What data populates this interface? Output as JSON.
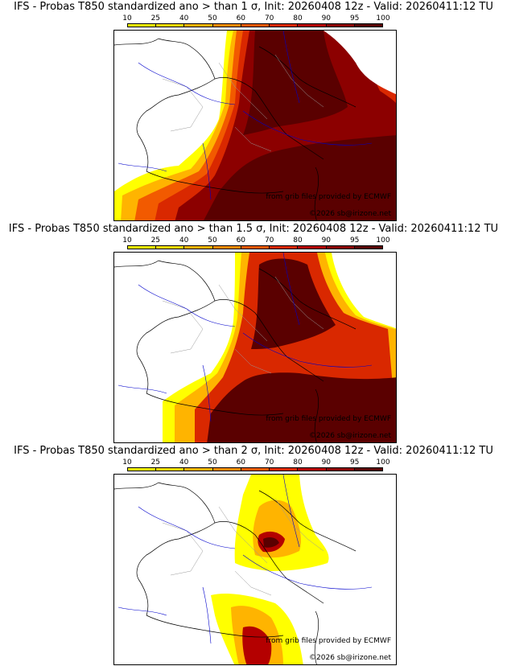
{
  "panels": [
    {
      "title": "IFS - Probas T850  standardized ano > than 1 σ, Init: 20260408 12z - Valid: 20260411:12 TU",
      "threshold": "1 σ",
      "credit_source": "from grib files provided by ECMWF",
      "credit_copyright": "©2026 sb@irizone.net"
    },
    {
      "title": "IFS - Probas T850  standardized ano > than 1.5 σ, Init: 20260408 12z - Valid: 20260411:12 TU",
      "threshold": "1.5 σ",
      "credit_source": "from grib files provided by ECMWF",
      "credit_copyright": "©2026 sb@irizone.net"
    },
    {
      "title": "IFS - Probas T850  standardized ano > than 2 σ, Init: 20260408 12z - Valid: 20260411:12 TU",
      "threshold": "2 σ",
      "credit_source": "from grib files provided by ECMWF",
      "credit_copyright": "©2026 sb@irizone.net"
    }
  ],
  "colorbar": {
    "ticks": [
      "10",
      "25",
      "40",
      "50",
      "60",
      "70",
      "80",
      "90",
      "95",
      "100"
    ],
    "colors": [
      "#ffff00",
      "#ffdd00",
      "#ffb400",
      "#ff8c00",
      "#f25a00",
      "#d92800",
      "#b40000",
      "#8c0000",
      "#5a0000"
    ]
  },
  "map_colors": {
    "water": "#0000cc",
    "borders": "#000000",
    "regions": "#999999",
    "land": "#ffffff"
  }
}
